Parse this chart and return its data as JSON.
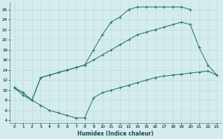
{
  "xlabel": "Humidex (Indice chaleur)",
  "bg_color": "#d4ecee",
  "grid_color": "#b8d4d6",
  "line_color": "#2a7a6a",
  "xlim": [
    -0.5,
    23.5
  ],
  "ylim": [
    3.5,
    27.5
  ],
  "yticks": [
    4,
    6,
    8,
    10,
    12,
    14,
    16,
    18,
    20,
    22,
    24,
    26
  ],
  "xticks": [
    0,
    1,
    2,
    3,
    4,
    5,
    6,
    7,
    8,
    9,
    10,
    11,
    12,
    13,
    14,
    15,
    16,
    17,
    18,
    19,
    20,
    21,
    22,
    23
  ],
  "line1_x": [
    0,
    1,
    2,
    3,
    4,
    5,
    6,
    7,
    8,
    9,
    10,
    11,
    12,
    13,
    14,
    15,
    16,
    17,
    18,
    19,
    20
  ],
  "line1_y": [
    10.5,
    9.5,
    8.0,
    12.5,
    13.0,
    13.5,
    14.0,
    14.5,
    15.0,
    18.0,
    21.0,
    23.5,
    24.5,
    26.0,
    26.5,
    26.5,
    26.5,
    26.5,
    26.5,
    26.5,
    26.0
  ],
  "line2_x": [
    0,
    1,
    2,
    3,
    4,
    5,
    6,
    7,
    8,
    9,
    10,
    11,
    12,
    13,
    14,
    15,
    16,
    17,
    18,
    19,
    20,
    21,
    22,
    23
  ],
  "line2_y": [
    10.5,
    9.5,
    8.0,
    12.5,
    13.0,
    13.5,
    14.0,
    14.5,
    15.0,
    16.0,
    17.0,
    18.0,
    19.0,
    20.0,
    21.0,
    21.5,
    22.0,
    22.5,
    23.0,
    23.5,
    23.0,
    18.5,
    15.0,
    13.0
  ],
  "line3_x": [
    0,
    1,
    2,
    3,
    4,
    5,
    6,
    7,
    8,
    9,
    10,
    11,
    12,
    13,
    14,
    15,
    16,
    17,
    18,
    19,
    20,
    21,
    22,
    23
  ],
  "line3_y": [
    10.5,
    9.0,
    8.0,
    7.0,
    6.0,
    5.5,
    5.0,
    4.5,
    4.5,
    8.5,
    9.5,
    10.0,
    10.5,
    11.0,
    11.5,
    12.0,
    12.5,
    12.8,
    13.0,
    13.2,
    13.4,
    13.6,
    13.8,
    13.0
  ]
}
